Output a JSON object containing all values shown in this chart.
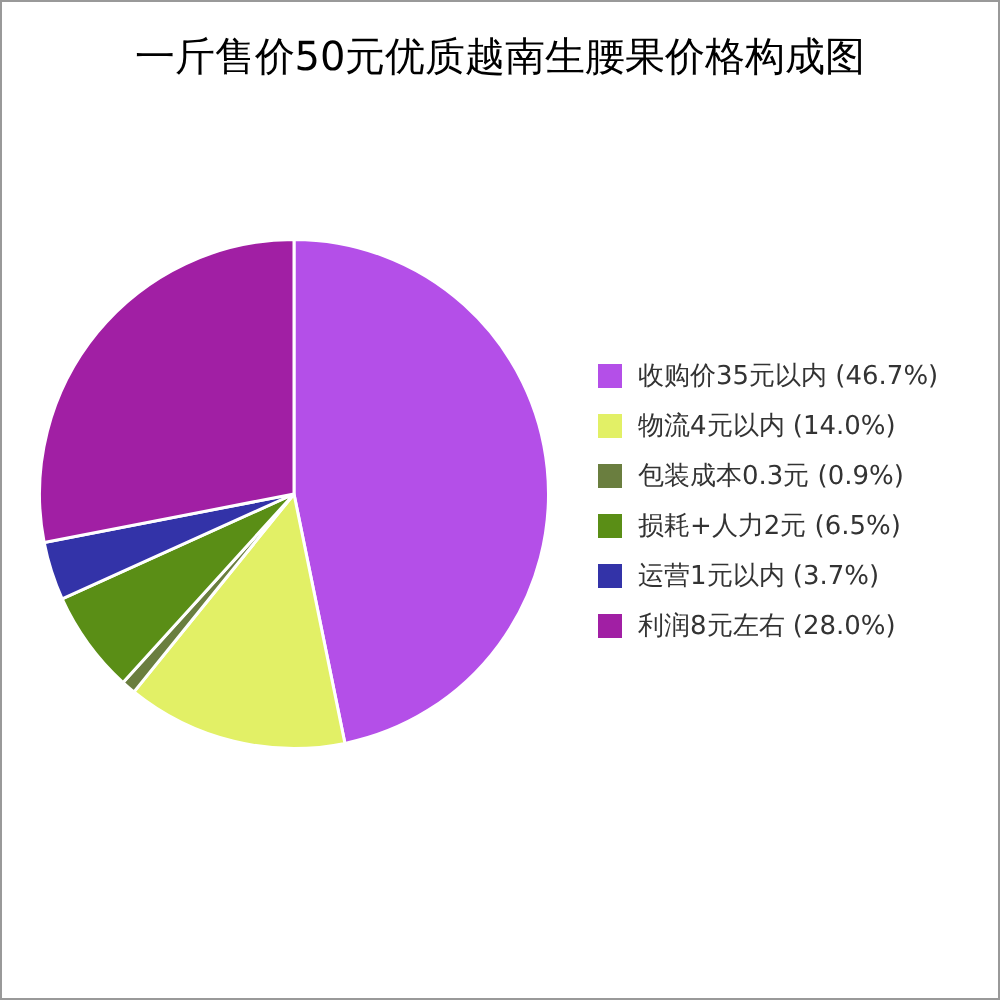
{
  "chart_data": {
    "type": "pie",
    "title": "一斤售价50元优质越南生腰果价格构成图",
    "categories": [
      "收购价35元以内 (46.7%)",
      "物流4元以内 (14.0%)",
      "包装成本0.3元 (0.9%)",
      "损耗+人力2元 (6.5%)",
      "运营1元以内 (3.7%)",
      "利润8元左右 (28.0%)"
    ],
    "values": [
      46.7,
      14.0,
      0.9,
      6.5,
      3.7,
      28.0
    ],
    "colors": [
      "#b44fe8",
      "#e2f066",
      "#6a7e3f",
      "#5a8e16",
      "#3333a8",
      "#a11fa4"
    ],
    "legend": "right"
  }
}
